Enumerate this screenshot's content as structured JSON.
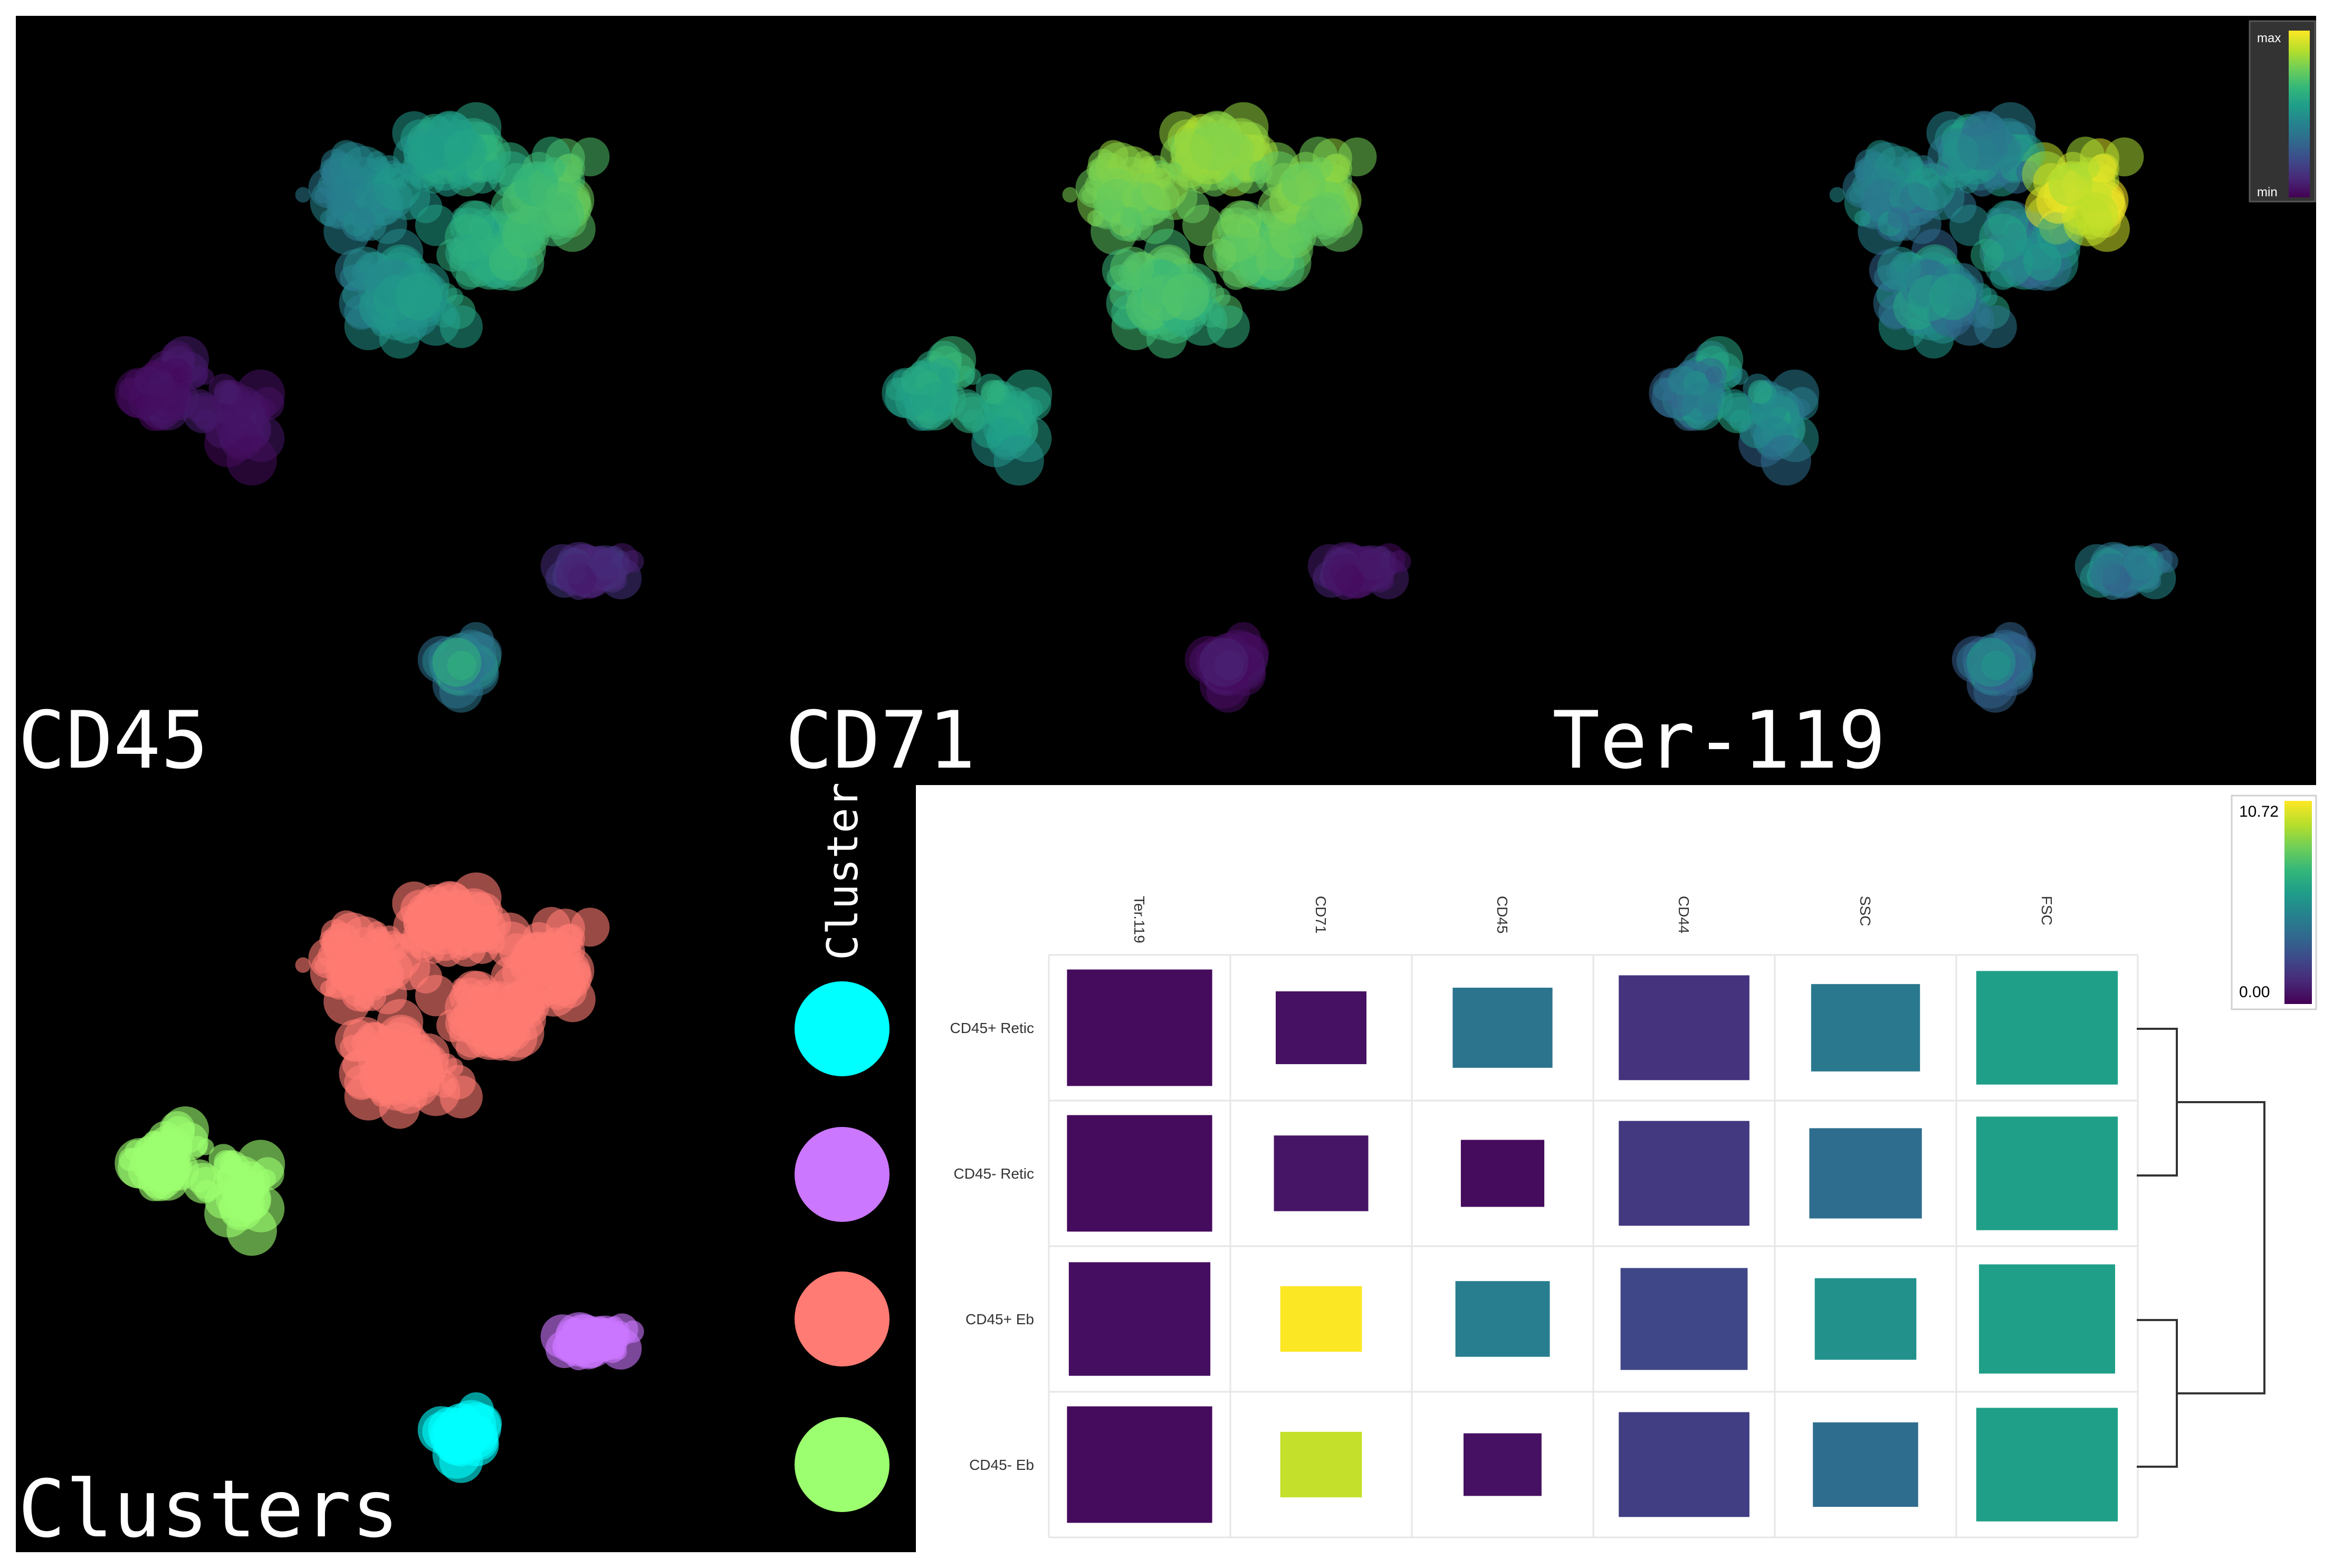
{
  "panels": [
    {
      "label": "CD45",
      "marker": "CD45"
    },
    {
      "label": "CD71",
      "marker": "CD71"
    },
    {
      "label": "Ter-119",
      "marker": "Ter-119"
    }
  ],
  "umap_colorbar": {
    "max_label": "max",
    "min_label": "min"
  },
  "clusters_panel": {
    "label": "Clusters",
    "legend_title": "Cluster",
    "legend_colors": [
      "#00ffff",
      "#cc77ff",
      "#ff7b73",
      "#9cff6f"
    ]
  },
  "palette": {
    "viridis": [
      "#440154",
      "#482878",
      "#3e4989",
      "#31688e",
      "#26828e",
      "#1f9e89",
      "#35b779",
      "#6ece58",
      "#b5de2b",
      "#fde725"
    ],
    "background": "#000000"
  },
  "chart_data": {
    "type": "heatmap",
    "title": "",
    "columns": [
      "Ter.119",
      "CD71",
      "CD45",
      "CD44",
      "SSC",
      "FSC"
    ],
    "rows": [
      "CD45+ Retic",
      "CD45- Retic",
      "CD45+ Eb",
      "CD45- Eb"
    ],
    "values": [
      [
        0.3,
        0.5,
        4.1,
        1.6,
        4.3,
        6.0
      ],
      [
        0.3,
        0.6,
        0.3,
        1.8,
        3.8,
        6.0
      ],
      [
        0.4,
        10.7,
        4.6,
        2.3,
        5.4,
        6.0
      ],
      [
        0.3,
        9.8,
        0.5,
        2.0,
        3.8,
        6.0
      ]
    ],
    "size_fraction": [
      [
        0.8,
        0.5,
        0.55,
        0.72,
        0.6,
        0.78
      ],
      [
        0.8,
        0.52,
        0.46,
        0.72,
        0.62,
        0.78
      ],
      [
        0.78,
        0.45,
        0.52,
        0.7,
        0.56,
        0.75
      ],
      [
        0.8,
        0.45,
        0.43,
        0.72,
        0.58,
        0.78
      ]
    ],
    "colorbar": {
      "min": 0.0,
      "max": 10.72,
      "min_label": "0.00",
      "max_label": "10.72"
    },
    "dendrogram": "rows: (CD45+ Retic, CD45- Retic), (CD45+ Eb, CD45- Eb)"
  }
}
